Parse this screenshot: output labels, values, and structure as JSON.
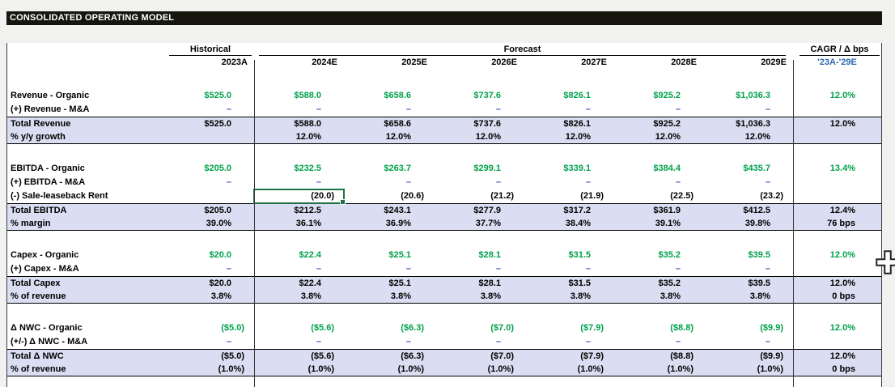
{
  "title": "CONSOLIDATED OPERATING MODEL",
  "header": {
    "groups": {
      "historical": "Historical",
      "forecast": "Forecast",
      "cagr": "CAGR / Δ bps"
    },
    "years": [
      "2023A",
      "2024E",
      "2025E",
      "2026E",
      "2027E",
      "2028E",
      "2029E"
    ],
    "cagr_period": "'23A-'29E"
  },
  "rows": [
    {
      "type": "item",
      "label": "Revenue - Organic",
      "value_color": "green",
      "cagr_color": "green",
      "values": [
        "$525.0",
        "$588.0",
        "$658.6",
        "$737.6",
        "$826.1",
        "$925.2",
        "$1,036.3"
      ],
      "cagr": "12.0%"
    },
    {
      "type": "item",
      "label": "(+) Revenue - M&A",
      "value_color": "blue",
      "values": [
        "–",
        "–",
        "–",
        "–",
        "–",
        "–",
        "–"
      ],
      "cagr": ""
    },
    {
      "type": "total",
      "label": "Total Revenue",
      "value_color": "black",
      "values": [
        "$525.0",
        "$588.0",
        "$658.6",
        "$737.6",
        "$826.1",
        "$925.2",
        "$1,036.3"
      ],
      "cagr": "12.0%"
    },
    {
      "type": "totalpct",
      "label": "% y/y growth",
      "value_color": "black",
      "values": [
        "",
        "12.0%",
        "12.0%",
        "12.0%",
        "12.0%",
        "12.0%",
        "12.0%"
      ],
      "cagr": ""
    },
    {
      "type": "gap"
    },
    {
      "type": "item",
      "label": "EBITDA - Organic",
      "value_color": "green",
      "cagr_color": "green",
      "values": [
        "$205.0",
        "$232.5",
        "$263.7",
        "$299.1",
        "$339.1",
        "$384.4",
        "$435.7"
      ],
      "cagr": "13.4%"
    },
    {
      "type": "item",
      "label": "(+) EBITDA - M&A",
      "value_color": "blue",
      "values": [
        "–",
        "–",
        "–",
        "–",
        "–",
        "–",
        "–"
      ],
      "cagr": ""
    },
    {
      "type": "item",
      "label": "(-) Sale-leaseback Rent",
      "value_color": "black",
      "selected_col": 1,
      "values": [
        "",
        "(20.0)",
        "(20.6)",
        "(21.2)",
        "(21.9)",
        "(22.5)",
        "(23.2)"
      ],
      "cagr": ""
    },
    {
      "type": "total",
      "label": "Total EBITDA",
      "value_color": "black",
      "values": [
        "$205.0",
        "$212.5",
        "$243.1",
        "$277.9",
        "$317.2",
        "$361.9",
        "$412.5"
      ],
      "cagr": "12.4%"
    },
    {
      "type": "totalpct",
      "label": "% margin",
      "value_color": "black",
      "values": [
        "39.0%",
        "36.1%",
        "36.9%",
        "37.7%",
        "38.4%",
        "39.1%",
        "39.8%"
      ],
      "cagr": "76 bps"
    },
    {
      "type": "gap"
    },
    {
      "type": "item",
      "label": "Capex - Organic",
      "value_color": "green",
      "cagr_color": "green",
      "values": [
        "$20.0",
        "$22.4",
        "$25.1",
        "$28.1",
        "$31.5",
        "$35.2",
        "$39.5"
      ],
      "cagr": "12.0%"
    },
    {
      "type": "item",
      "label": "(+) Capex - M&A",
      "value_color": "blue",
      "values": [
        "–",
        "–",
        "–",
        "–",
        "–",
        "–",
        "–"
      ],
      "cagr": ""
    },
    {
      "type": "total",
      "label": "Total Capex",
      "value_color": "black",
      "values": [
        "$20.0",
        "$22.4",
        "$25.1",
        "$28.1",
        "$31.5",
        "$35.2",
        "$39.5"
      ],
      "cagr": "12.0%"
    },
    {
      "type": "totalpct",
      "label": "% of revenue",
      "value_color": "black",
      "values": [
        "3.8%",
        "3.8%",
        "3.8%",
        "3.8%",
        "3.8%",
        "3.8%",
        "3.8%"
      ],
      "cagr": "0 bps"
    },
    {
      "type": "gap"
    },
    {
      "type": "item",
      "label": "Δ NWC - Organic",
      "value_color": "green",
      "cagr_color": "green",
      "values": [
        "($5.0)",
        "($5.6)",
        "($6.3)",
        "($7.0)",
        "($7.9)",
        "($8.8)",
        "($9.9)"
      ],
      "cagr": "12.0%"
    },
    {
      "type": "item",
      "label": "(+/-) Δ NWC - M&A",
      "value_color": "blue",
      "values": [
        "–",
        "–",
        "–",
        "–",
        "–",
        "–",
        "–"
      ],
      "cagr": ""
    },
    {
      "type": "total",
      "label": "Total Δ NWC",
      "value_color": "black",
      "values": [
        "($5.0)",
        "($5.6)",
        "($6.3)",
        "($7.0)",
        "($7.9)",
        "($8.8)",
        "($9.9)"
      ],
      "cagr": "12.0%"
    },
    {
      "type": "totalpct",
      "label": "% of revenue",
      "value_color": "black",
      "values": [
        "(1.0%)",
        "(1.0%)",
        "(1.0%)",
        "(1.0%)",
        "(1.0%)",
        "(1.0%)",
        "(1.0%)"
      ],
      "cagr": "0 bps"
    }
  ],
  "selection": {
    "row_label": "(-) Sale-leaseback Rent",
    "column": "2024E",
    "value": "(20.0)"
  },
  "icons": {
    "cursor": "excel-cell-plus-cursor"
  },
  "colors": {
    "organic_green": "#00A14B",
    "input_blue": "#3355C0",
    "period_blue": "#2E68B0",
    "total_row_highlight": "#DBDEF2",
    "selection_green": "#1E7145",
    "title_bar_bg": "#16160F"
  }
}
